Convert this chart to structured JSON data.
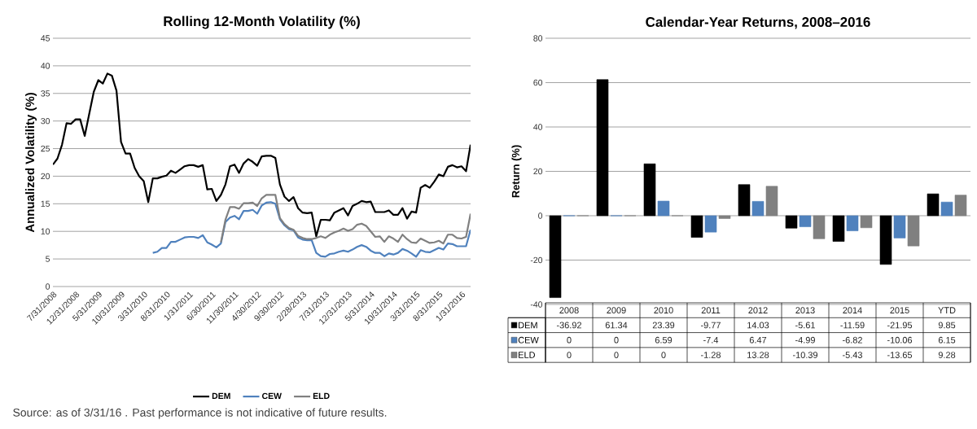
{
  "chart_data": [
    {
      "type": "line",
      "title": "Rolling 12-Month Volatility (%)",
      "ylabel": "Annualized Volatility (%)",
      "categories": [
        "7/31/2008",
        null,
        null,
        null,
        null,
        "12/31/2008",
        null,
        null,
        null,
        null,
        "5/31/2009",
        null,
        null,
        null,
        null,
        "10/31/2009",
        null,
        null,
        null,
        null,
        "3/31/2010",
        null,
        null,
        null,
        null,
        "8/31/2010",
        null,
        null,
        null,
        null,
        "1/31/2011",
        null,
        null,
        null,
        null,
        "6/30/2011",
        null,
        null,
        null,
        null,
        "11/30/2011",
        null,
        null,
        null,
        null,
        "4/30/2012",
        null,
        null,
        null,
        null,
        "9/30/2012",
        null,
        null,
        null,
        null,
        "2/28/2013",
        null,
        null,
        null,
        null,
        "7/31/2013",
        null,
        null,
        null,
        null,
        "12/31/2013",
        null,
        null,
        null,
        null,
        "5/31/2014",
        null,
        null,
        null,
        null,
        "10/31/2014",
        null,
        null,
        null,
        null,
        "3/31/2015",
        null,
        null,
        null,
        null,
        "8/31/2015",
        null,
        null,
        null,
        null,
        "1/31/2016",
        null,
        null
      ],
      "series": [
        {
          "name": "DEM",
          "color": "#000000",
          "values": [
            22.1,
            23.2,
            25.7,
            29.6,
            29.5,
            30.3,
            30.3,
            27.3,
            31.3,
            35.3,
            37.4,
            36.8,
            38.6,
            38.2,
            35.5,
            26.2,
            24.1,
            24.1,
            21.5,
            20.0,
            19.1,
            15.3,
            19.6,
            19.6,
            19.9,
            20.1,
            21.0,
            20.6,
            21.2,
            21.8,
            22.0,
            22.0,
            21.7,
            22.0,
            17.6,
            17.7,
            15.5,
            16.6,
            18.5,
            21.8,
            22.1,
            20.6,
            22.3,
            23.1,
            22.6,
            21.9,
            23.6,
            23.7,
            23.7,
            23.3,
            18.5,
            16.3,
            15.5,
            16.2,
            14.2,
            13.4,
            13.3,
            13.4,
            9.1,
            12.1,
            12.1,
            12.0,
            13.4,
            13.8,
            14.2,
            12.9,
            14.6,
            15.0,
            15.5,
            15.3,
            15.4,
            13.5,
            13.5,
            13.5,
            13.8,
            13.0,
            13.0,
            14.2,
            12.3,
            13.6,
            13.4,
            17.9,
            18.4,
            17.9,
            19.0,
            20.3,
            20.0,
            21.7,
            22.0,
            21.6,
            21.8,
            20.9,
            25.7
          ]
        },
        {
          "name": "CEW",
          "color": "#4f81bd",
          "values": [
            null,
            null,
            null,
            null,
            null,
            null,
            null,
            null,
            null,
            null,
            null,
            null,
            null,
            null,
            null,
            null,
            null,
            null,
            null,
            null,
            null,
            null,
            6.1,
            6.3,
            7.0,
            7.0,
            8.1,
            8.1,
            8.5,
            8.9,
            9.0,
            9.0,
            8.8,
            9.3,
            8.0,
            7.6,
            7.1,
            7.8,
            11.7,
            12.5,
            12.8,
            12.2,
            13.7,
            13.7,
            13.9,
            13.2,
            14.7,
            15.2,
            15.3,
            15.0,
            12.2,
            11.1,
            10.4,
            10.2,
            8.9,
            8.5,
            8.4,
            8.4,
            6.1,
            5.5,
            5.4,
            5.9,
            6.0,
            6.3,
            6.5,
            6.3,
            6.7,
            7.2,
            7.5,
            7.2,
            6.5,
            6.1,
            6.1,
            5.5,
            6.0,
            5.8,
            6.1,
            6.8,
            6.5,
            6.0,
            5.4,
            6.6,
            6.3,
            6.2,
            6.6,
            7.0,
            6.7,
            7.8,
            7.7,
            7.3,
            7.3,
            7.3,
            10.3
          ]
        },
        {
          "name": "ELD",
          "color": "#808080",
          "values": [
            null,
            null,
            null,
            null,
            null,
            null,
            null,
            null,
            null,
            null,
            null,
            null,
            null,
            null,
            null,
            null,
            null,
            null,
            null,
            null,
            null,
            null,
            null,
            null,
            null,
            null,
            null,
            null,
            null,
            null,
            null,
            null,
            null,
            null,
            null,
            null,
            null,
            8.0,
            12.1,
            14.4,
            14.4,
            14.1,
            15.1,
            15.1,
            15.2,
            14.6,
            16.0,
            16.6,
            16.6,
            16.6,
            12.4,
            11.3,
            10.6,
            10.3,
            9.2,
            8.8,
            8.6,
            8.6,
            8.8,
            9.1,
            8.8,
            9.4,
            9.8,
            10.1,
            10.5,
            10.1,
            10.4,
            11.2,
            11.4,
            11.0,
            10.0,
            9.0,
            9.1,
            8.1,
            9.1,
            8.7,
            8.1,
            9.4,
            8.6,
            8.0,
            7.9,
            8.7,
            8.3,
            7.9,
            8.0,
            8.3,
            7.8,
            9.4,
            9.4,
            8.8,
            8.7,
            9.0,
            13.2
          ]
        }
      ],
      "ylim": [
        0,
        45
      ],
      "yticks": [
        0,
        5,
        10,
        15,
        20,
        25,
        30,
        35,
        40,
        45
      ],
      "grid": "y",
      "legend": "bottom",
      "line_style": "solid",
      "marker": "none",
      "annotations": [
        "Source: as of 3/31/16 . Past performance is not indicative of future results."
      ]
    },
    {
      "type": "bar",
      "title": "Calendar-Year Returns,  2008–2016",
      "ylabel": "Return (%)",
      "categories": [
        "2008",
        "2009",
        "2010",
        "2011",
        "2012",
        "2013",
        "2014",
        "2015",
        "YTD"
      ],
      "series": [
        {
          "name": "DEM",
          "color": "#000000",
          "values": [
            -36.92,
            61.34,
            23.39,
            -9.77,
            14.03,
            -5.61,
            -11.59,
            -21.95,
            9.85
          ]
        },
        {
          "name": "CEW",
          "color": "#4f81bd",
          "values": [
            0,
            0,
            6.59,
            -7.4,
            6.47,
            -4.99,
            -6.82,
            -10.06,
            6.15
          ]
        },
        {
          "name": "ELD",
          "color": "#808080",
          "values": [
            0,
            0,
            0,
            -1.28,
            13.28,
            -10.39,
            -5.43,
            -13.65,
            9.28
          ]
        }
      ],
      "ylim": [
        -40,
        80
      ],
      "yticks": [
        -40,
        -20,
        0,
        20,
        40,
        60,
        80
      ],
      "grid": "y",
      "legend": "bottom",
      "data_labels": true
    }
  ]
}
